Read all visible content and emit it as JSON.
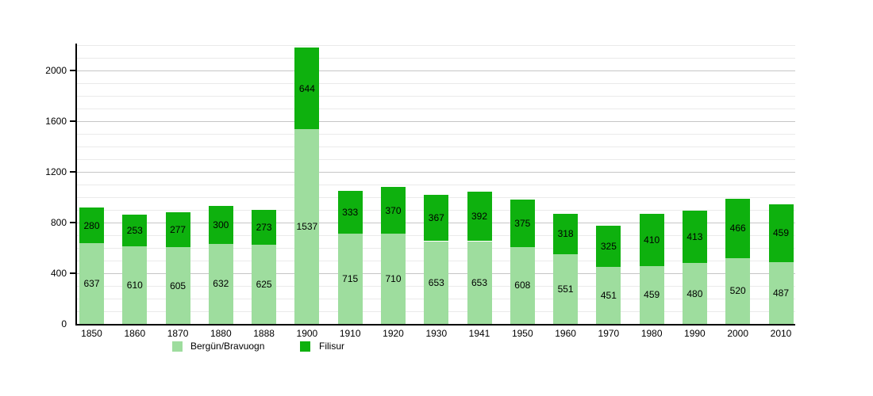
{
  "chart_data": {
    "type": "bar",
    "stacked": true,
    "title": "",
    "xlabel": "",
    "ylabel": "",
    "categories": [
      "1850",
      "1860",
      "1870",
      "1880",
      "1888",
      "1900",
      "1910",
      "1920",
      "1930",
      "1941",
      "1950",
      "1960",
      "1970",
      "1980",
      "1990",
      "2000",
      "2010"
    ],
    "series": [
      {
        "name": "Bergün/Bravuogn",
        "color": "#9edd9e",
        "values": [
          637,
          610,
          605,
          632,
          625,
          1537,
          715,
          710,
          653,
          653,
          608,
          551,
          451,
          459,
          480,
          520,
          487
        ]
      },
      {
        "name": "Filisur",
        "color": "#0eb10e",
        "values": [
          280,
          253,
          277,
          300,
          273,
          644,
          333,
          370,
          367,
          392,
          375,
          318,
          325,
          410,
          413,
          466,
          459
        ]
      }
    ],
    "ylim": [
      0,
      2200
    ],
    "yticks": [
      0,
      400,
      800,
      1200,
      1600,
      2000
    ],
    "minor_gridline_step": 100,
    "major_gridline_step": 400,
    "grid": true,
    "legend_position": "bottom",
    "bar_value_labels": true
  },
  "colors": {
    "background": "#ffffff",
    "axis": "#000000",
    "major_gridline": "#c6c6c6",
    "minor_gridline": "#eaeaea",
    "label_text": "#000000"
  }
}
